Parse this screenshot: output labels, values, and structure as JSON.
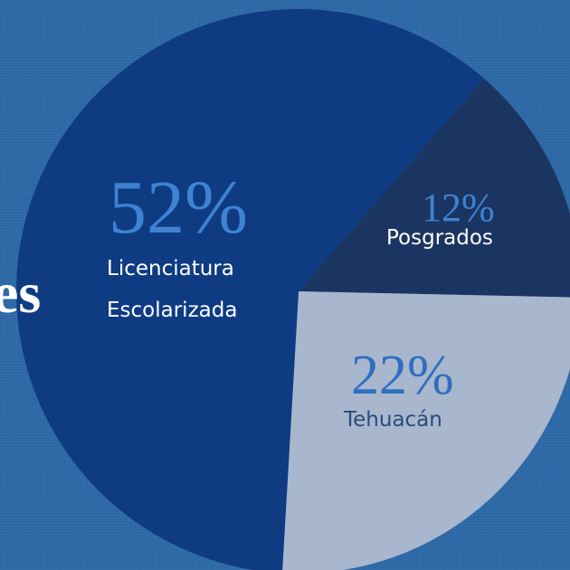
{
  "chart_data": {
    "type": "pie",
    "title": "es",
    "categories": [
      "Licenciatura Escolarizada",
      "Posgrados",
      "Tehuacán"
    ],
    "values": [
      52,
      12,
      22
    ],
    "value_labels": [
      "52%",
      "12%",
      "22%"
    ],
    "colors": [
      "#0e3b82",
      "#1b3562",
      "#a8b7ce"
    ]
  }
}
